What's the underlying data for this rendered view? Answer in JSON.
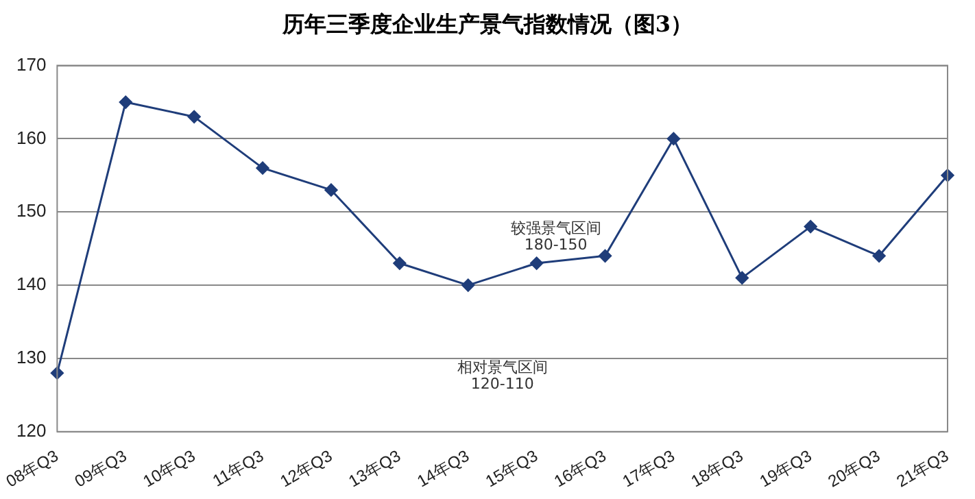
{
  "chart_data": {
    "type": "line",
    "title": "历年三季度企业生产景气指数情况（图3）",
    "categories": [
      "08年Q3",
      "09年Q3",
      "10年Q3",
      "11年Q3",
      "12年Q3",
      "13年Q3",
      "14年Q3",
      "15年Q3",
      "16年Q3",
      "17年Q3",
      "18年Q3",
      "19年Q3",
      "20年Q3",
      "21年Q3"
    ],
    "values": [
      128,
      165,
      163,
      156,
      153,
      143,
      140,
      143,
      144,
      160,
      141,
      148,
      144,
      155
    ],
    "color": "#1f3d7a",
    "marker": "diamond",
    "line_style": "solid",
    "ylim": [
      120,
      170
    ],
    "yticks": [
      120,
      130,
      140,
      150,
      160,
      170
    ],
    "grid": "y",
    "annotations": [
      "较强景气区间\n180-150",
      "相对景气区间\n120-110"
    ]
  }
}
